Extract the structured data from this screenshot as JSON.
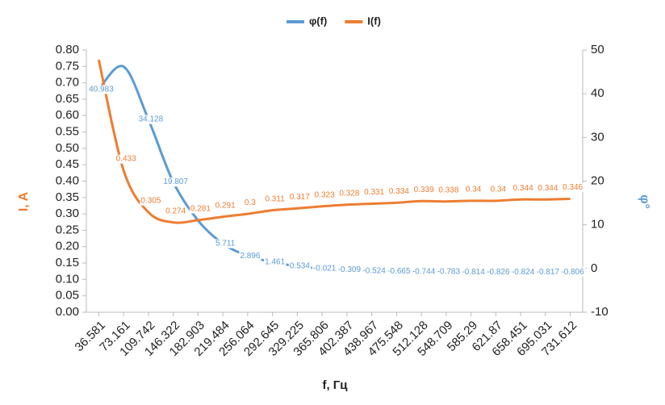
{
  "chart_data": {
    "type": "line",
    "x_label": "f, Гц",
    "y_label": "I, A",
    "y2_label": "φ°",
    "categories": [
      "36.581",
      "73.161",
      "109.742",
      "146.322",
      "182.903",
      "219.484",
      "256.064",
      "292.645",
      "329.225",
      "365.806",
      "402.387",
      "438.967",
      "475.548",
      "512.128",
      "548.709",
      "585.29",
      "621.87",
      "658.451",
      "695.031",
      "731.612"
    ],
    "series": [
      {
        "name": "φ(f)",
        "color": "#5b9bd5",
        "axis": "y2",
        "values": [
          40.983,
          46.2,
          34.128,
          19.807,
          11,
          5.711,
          2.896,
          1.461,
          0.534,
          -0.021,
          -0.309,
          -0.524,
          -0.665,
          -0.744,
          -0.783,
          -0.814,
          -0.826,
          -0.824,
          -0.817,
          -0.806
        ],
        "value_labels": [
          "40.983",
          null,
          "34.128",
          "19.807",
          null,
          "5.711",
          "2.896",
          "1.461",
          "0.534",
          "-0.021",
          "-0.309",
          "-0.524",
          "-0.665",
          "-0.744",
          "-0.783",
          "-0.814",
          "-0.826",
          "-0.824",
          "-0.817",
          "-0.806"
        ]
      },
      {
        "name": "I(f)",
        "color": "#ed7d31",
        "values": [
          0.77,
          0.433,
          0.305,
          0.274,
          0.281,
          0.291,
          0.3,
          0.311,
          0.317,
          0.323,
          0.328,
          0.331,
          0.334,
          0.339,
          0.338,
          0.34,
          0.34,
          0.344,
          0.344,
          0.346
        ],
        "value_labels": [
          null,
          "0.433",
          "0.305",
          "0.274",
          "0.281",
          "0.291",
          "0.3",
          "0.311",
          "0.317",
          "0.323",
          "0.328",
          "0.331",
          "0.334",
          "0.339",
          "0.338",
          "0.34",
          "0.34",
          "0.344",
          "0.344",
          "0.346"
        ]
      }
    ],
    "ylim": [
      0,
      0.8
    ],
    "yticks": [
      {
        "value": 0,
        "label": "0.00"
      },
      {
        "value": 0.05,
        "label": "0.05"
      },
      {
        "value": 0.1,
        "label": "0.10"
      },
      {
        "value": 0.15,
        "label": "0.15"
      },
      {
        "value": 0.2,
        "label": "0.20"
      },
      {
        "value": 0.25,
        "label": "0.25"
      },
      {
        "value": 0.3,
        "label": "0.30"
      },
      {
        "value": 0.35,
        "label": "0.35"
      },
      {
        "value": 0.4,
        "label": "0.40"
      },
      {
        "value": 0.45,
        "label": "0.45"
      },
      {
        "value": 0.5,
        "label": "0.50"
      },
      {
        "value": 0.55,
        "label": "0.55"
      },
      {
        "value": 0.6,
        "label": "0.60"
      },
      {
        "value": 0.65,
        "label": "0.65"
      },
      {
        "value": 0.7,
        "label": "0.70"
      },
      {
        "value": 0.75,
        "label": "0.75"
      },
      {
        "value": 0.8,
        "label": "0.80"
      }
    ],
    "y2lim": [
      -10,
      50
    ],
    "y2ticks": [
      -10,
      0,
      10,
      20,
      30,
      40,
      50
    ],
    "legend": "top",
    "grid": false
  }
}
